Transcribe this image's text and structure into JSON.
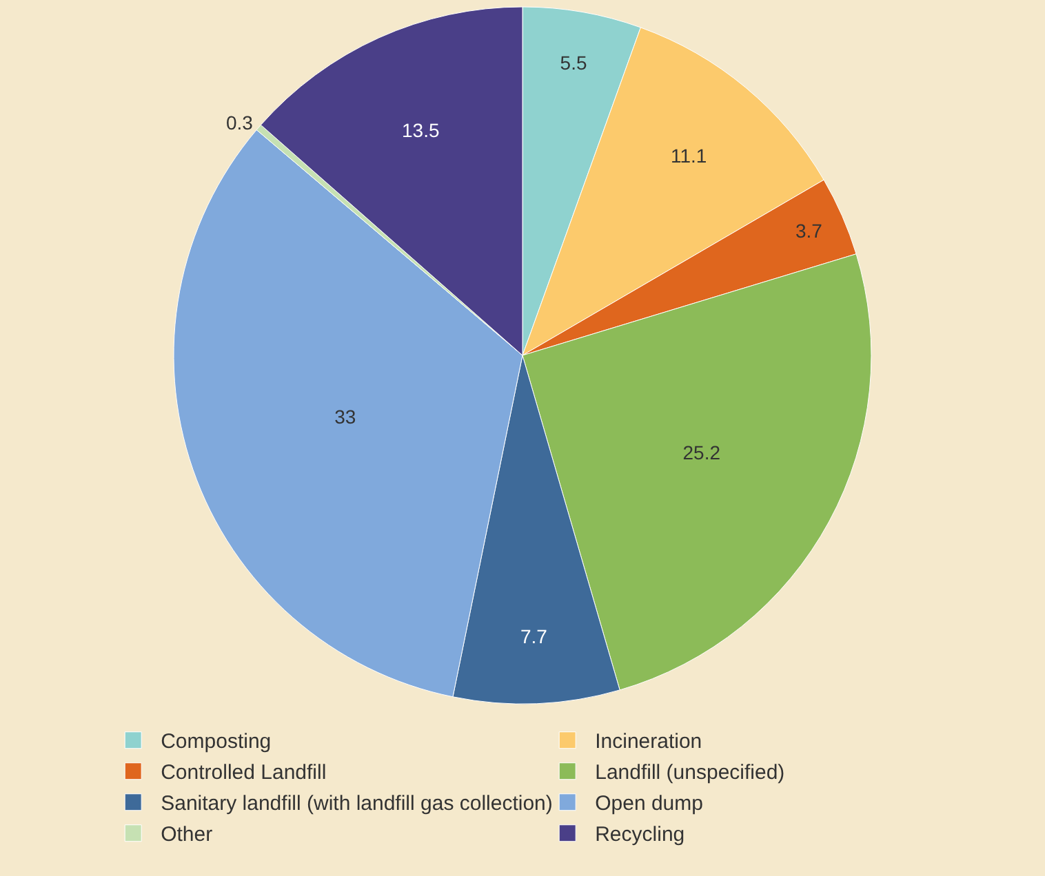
{
  "chart_data": {
    "type": "pie",
    "categories": [
      "Composting",
      "Incineration",
      "Controlled Landfill",
      "Landfill (unspecified)",
      "Sanitary landfill (with landfill gas collection)",
      "Open dump",
      "Other",
      "Recycling"
    ],
    "values": [
      5.5,
      11.1,
      3.7,
      25.2,
      7.7,
      33,
      0.3,
      13.5
    ],
    "colors": [
      "#8fd2cf",
      "#fcca6c",
      "#df661e",
      "#8cbb58",
      "#3e6a99",
      "#80a9dc",
      "#c6e1b3",
      "#4a3f88"
    ],
    "data_labels": true,
    "legend": "bottom"
  }
}
